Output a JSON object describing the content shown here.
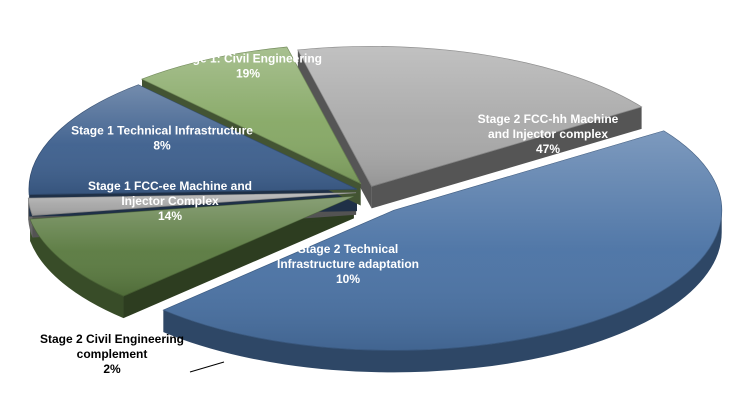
{
  "chart_data": {
    "type": "pie",
    "style": "3d-exploded",
    "slices": [
      {
        "label_lines": [
          "Stage 1: Civil Engineering"
        ],
        "value": 19,
        "value_label": "19%",
        "color": "#a9a9a9"
      },
      {
        "label_lines": [
          "Stage 2 FCC-hh Machine",
          "and Injector complex"
        ],
        "value": 47,
        "value_label": "47%",
        "color": "#4a72a4"
      },
      {
        "label_lines": [
          "Stage 2 Technical",
          "Infrastructure adaptation"
        ],
        "value": 10,
        "value_label": "10%",
        "color": "#5a7a40"
      },
      {
        "label_lines": [
          "Stage 2 Civil Engineering",
          "complement"
        ],
        "value": 2,
        "value_label": "2%",
        "color": "#a6a6a6"
      },
      {
        "label_lines": [
          "Stage 1 FCC-ee Machine and",
          "Injector Complex"
        ],
        "value": 14,
        "value_label": "14%",
        "color": "#3d5f8d"
      },
      {
        "label_lines": [
          "Stage 1 Technical Infrastructure"
        ],
        "value": 8,
        "value_label": "8%",
        "color": "#86a865"
      }
    ]
  }
}
